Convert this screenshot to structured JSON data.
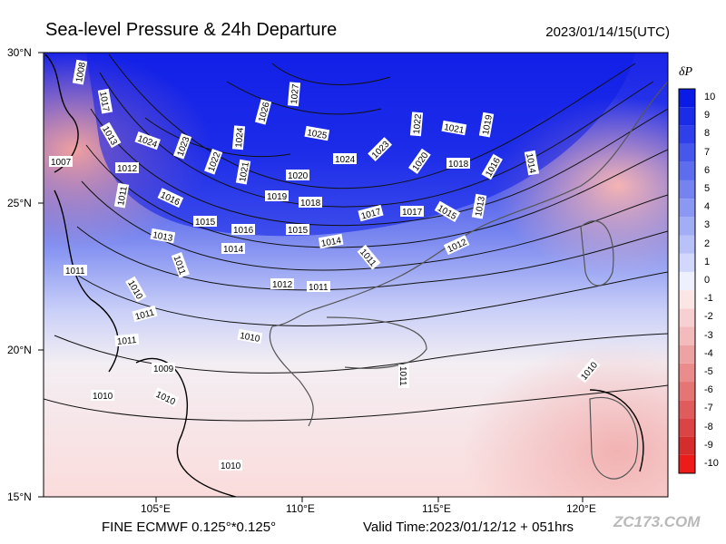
{
  "header": {
    "title": "Sea-level Pressure & 24h Departure",
    "valid_time": "2023/01/14/15(UTC)"
  },
  "footer": {
    "model": "FINE ECMWF 0.125°*0.125°",
    "valid_time": "Valid Time:2023/01/12/12 + 051hrs"
  },
  "watermark": "ZC173.COM",
  "map": {
    "lat_labels": [
      "30°N",
      "25°N",
      "20°N",
      "15°N"
    ],
    "lon_labels": [
      "105°E",
      "110°E",
      "115°E",
      "120°E"
    ],
    "isobar_labels": [
      "1008",
      "1017",
      "1013",
      "1024",
      "1023",
      "1026",
      "1027",
      "1024",
      "1025",
      "1022",
      "1021",
      "1019",
      "1007",
      "1012",
      "1022",
      "1021",
      "1020",
      "1024",
      "1023",
      "1020",
      "1018",
      "1016",
      "1014",
      "1011",
      "1016",
      "1019",
      "1018",
      "1017",
      "1017",
      "1015",
      "1013",
      "1015",
      "1016",
      "1015",
      "1014",
      "1012",
      "1013",
      "1014",
      "1011",
      "1010",
      "1011",
      "1012",
      "1011",
      "1011",
      "1011",
      "1010",
      "1009",
      "1011",
      "1010",
      "1010",
      "1011",
      "1010",
      "1010"
    ]
  },
  "colorbar": {
    "title": "δP",
    "levels": [
      "10",
      "9",
      "8",
      "7",
      "6",
      "5",
      "4",
      "3",
      "2",
      "1",
      "0",
      "-1",
      "-2",
      "-3",
      "-4",
      "-5",
      "-6",
      "-7",
      "-8",
      "-9",
      "-10"
    ],
    "colors": [
      "#0a1be6",
      "#1a2ce8",
      "#2f40ea",
      "#4657ec",
      "#5d6dee",
      "#7483f0",
      "#8a98f3",
      "#a1adf5",
      "#b8c2f8",
      "#d2d8fb",
      "#eef0fd",
      "#fbe6e6",
      "#f7d1d1",
      "#f3bbbb",
      "#eea3a3",
      "#ea8c8c",
      "#e57474",
      "#e05c5c",
      "#db4444",
      "#d52c2c",
      "#ee1b1b"
    ]
  }
}
